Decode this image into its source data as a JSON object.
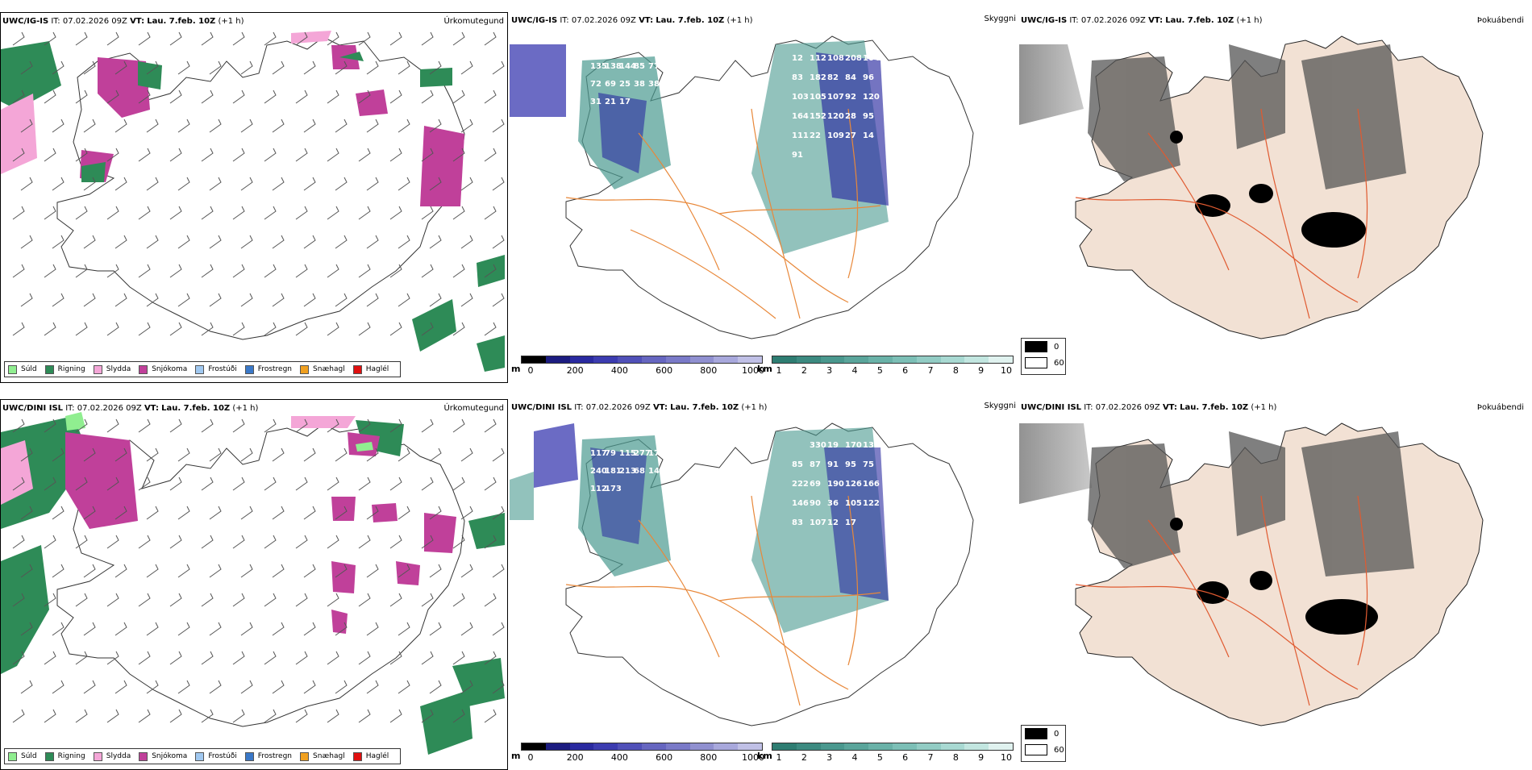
{
  "rows": [
    {
      "precip": {
        "model": "UWC/IG-IS",
        "it": "IT: 07.02.2026 09Z",
        "vt_label": "VT:",
        "vt": "Lau. 7.feb. 10Z",
        "lead": "(+1 h)",
        "title": "Úrkomutegund"
      },
      "vis": {
        "model": "UWC/IG-IS",
        "it": "IT: 07.02.2026 09Z",
        "vt_label": "VT:",
        "vt": "Lau. 7.feb. 10Z",
        "lead": "(+1 h)",
        "title": "Skyggni",
        "labels": [
          "135",
          "138",
          "144",
          "85",
          "77",
          "72",
          "69",
          "25",
          "38",
          "38",
          "31",
          "21",
          "17",
          "12",
          "112",
          "108",
          "208",
          "104",
          "83",
          "182",
          "82",
          "84",
          "96",
          "103",
          "105",
          "107",
          "92",
          "120",
          "164",
          "152",
          "120",
          "28",
          "95",
          "111",
          "22",
          "109",
          "27",
          "14",
          "91"
        ]
      },
      "fog": {
        "model": "UWC/IG-IS",
        "it": "IT: 07.02.2026 09Z",
        "vt_label": "VT:",
        "vt": "Lau. 7.feb. 10Z",
        "lead": "(+1 h)",
        "title": "Þokuábendi"
      }
    },
    {
      "precip": {
        "model": "UWC/DINI ISL",
        "it": "IT: 07.02.2026 09Z",
        "vt_label": "VT:",
        "vt": "Lau. 7.feb. 10Z",
        "lead": "(+1 h)",
        "title": "Úrkomutegund"
      },
      "vis": {
        "model": "UWC/DINI ISL",
        "it": "IT: 07.02.2026 09Z",
        "vt_label": "VT:",
        "vt": "Lau. 7.feb. 10Z",
        "lead": "(+1 h)",
        "title": "Skyggni",
        "labels": [
          "117",
          "79",
          "115",
          "277",
          "177",
          "240",
          "181",
          "213",
          "68",
          "141",
          "112",
          "173",
          "330",
          "19",
          "170",
          "130",
          "85",
          "87",
          "91",
          "95",
          "75",
          "222",
          "69",
          "190",
          "126",
          "166",
          "146",
          "90",
          "36",
          "105",
          "122",
          "83",
          "107",
          "12",
          "17"
        ]
      },
      "fog": {
        "model": "UWC/DINI ISL",
        "it": "IT: 07.02.2026 09Z",
        "vt_label": "VT:",
        "vt": "Lau. 7.feb. 10Z",
        "lead": "(+1 h)",
        "title": "Þokuábendi"
      }
    }
  ],
  "precip_legend": [
    {
      "label": "Súld",
      "color": "#90ee90"
    },
    {
      "label": "Rigning",
      "color": "#2e8b57"
    },
    {
      "label": "Slydda",
      "color": "#f4a6d7"
    },
    {
      "label": "Snjókoma",
      "color": "#c0409a"
    },
    {
      "label": "Frostúði",
      "color": "#a0c8f0"
    },
    {
      "label": "Frostregn",
      "color": "#3a78c8"
    },
    {
      "label": "Snæhagl",
      "color": "#f0a020"
    },
    {
      "label": "Haglél",
      "color": "#e01010"
    }
  ],
  "cloudbase_scale": {
    "unit": "m",
    "ticks": [
      "0",
      "200",
      "400",
      "600",
      "800",
      "1000"
    ]
  },
  "vis_scale": {
    "unit": "km",
    "ticks": [
      "1",
      "2",
      "3",
      "4",
      "5",
      "6",
      "7",
      "8",
      "9",
      "10"
    ]
  },
  "fog_scale": {
    "ticks": [
      "0",
      "60"
    ]
  },
  "colors": {
    "snow": "#c0409a",
    "rain": "#2e8b57",
    "sleet": "#f4a6d7",
    "road": "#e8883a",
    "land": "#f2e1d4",
    "cloud_low": "#2a2aa0",
    "vis_teal": "#4a9a90"
  }
}
